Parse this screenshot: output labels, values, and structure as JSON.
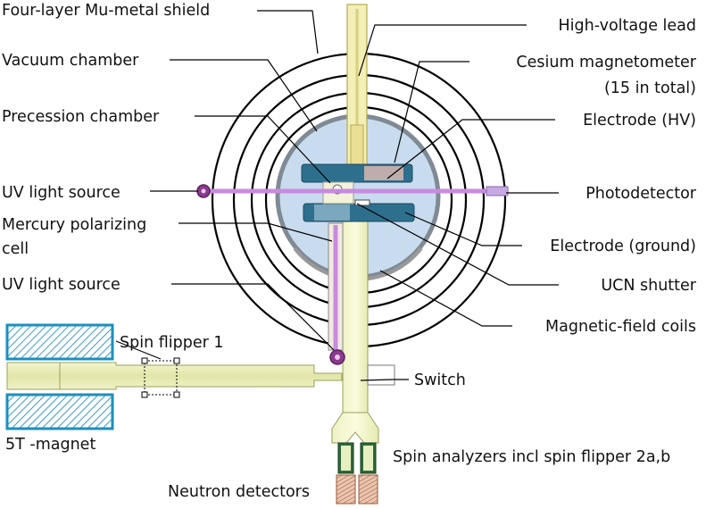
{
  "labels": {
    "shield": "Four-layer Mu-metal shield",
    "vacuum_chamber": "Vacuum chamber",
    "precession_chamber": "Precession chamber",
    "uv_source_1": "UV light source",
    "mercury_cell_line1": "Mercury polarizing",
    "mercury_cell_line2": "cell",
    "uv_source_2": "UV light source",
    "spin_flipper_1": "Spin flipper 1",
    "magnet": "5T -magnet",
    "neutron_detectors": "Neutron detectors",
    "hv_lead": "High-voltage lead",
    "cs_magnetometer_line1": "Cesium magnetometer",
    "cs_magnetometer_line2": "(15 in total)",
    "electrode_hv": "Electrode (HV)",
    "photodetector": "Photodetector",
    "electrode_ground": "Electrode (ground)",
    "ucn_shutter": "UCN shutter",
    "field_coils": "Magnetic-field coils",
    "switch": "Switch",
    "spin_analyzers": "Spin analyzers incl spin flipper 2a,b"
  },
  "colors": {
    "chamber_fill": "#c9dcef",
    "electrode_fill": "#2e6f8e",
    "guide_fill": "#e8ebb8",
    "uv_beam": "#c78be0",
    "uv_source": "#8b3a8e",
    "magnet_edge": "#1a8fc0",
    "detector_fill": "#c98b6a"
  }
}
